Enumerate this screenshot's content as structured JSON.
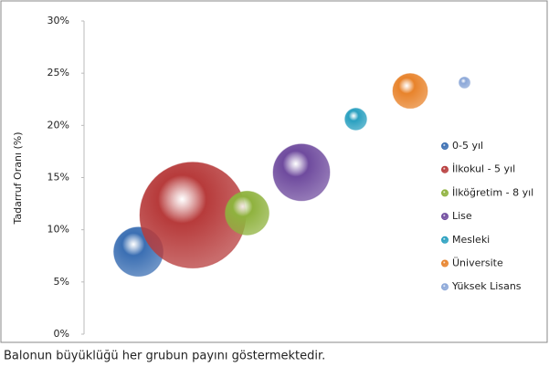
{
  "chart_data": {
    "type": "bubble",
    "y_label": "Tadarruf Oranı (%)",
    "note": "Balonun büyüklüğü her grubun payını göstermektedir.",
    "xlim": [
      0,
      8
    ],
    "ylim": [
      0,
      30
    ],
    "yticks": [
      {
        "value": 0,
        "label": "0%"
      },
      {
        "value": 5,
        "label": "5%"
      },
      {
        "value": 10,
        "label": "10%"
      },
      {
        "value": 15,
        "label": "15%"
      },
      {
        "value": 20,
        "label": "20%"
      },
      {
        "value": 25,
        "label": "25%"
      },
      {
        "value": 30,
        "label": "30%"
      }
    ],
    "legend": "right",
    "series": [
      {
        "name": "0-5 yıl",
        "color": "#3b6fb3",
        "x": [
          1
        ],
        "values": [
          7.9
        ],
        "sizes": [
          11.8
        ]
      },
      {
        "name": "İlkokul - 5 yıl",
        "color": "#b73b3b",
        "x": [
          2
        ],
        "values": [
          11.4
        ],
        "sizes": [
          54.5
        ]
      },
      {
        "name": "İlköğretim - 8 yıl",
        "color": "#8fb23e",
        "x": [
          3
        ],
        "values": [
          11.6
        ],
        "sizes": [
          9.3
        ]
      },
      {
        "name": "Lise",
        "color": "#6f4b9e",
        "x": [
          4
        ],
        "values": [
          15.5
        ],
        "sizes": [
          15.6
        ]
      },
      {
        "name": "Mesleki",
        "color": "#2aa0c0",
        "x": [
          5
        ],
        "values": [
          20.6
        ],
        "sizes": [
          2.3
        ]
      },
      {
        "name": "Üniversite",
        "color": "#e8832b",
        "x": [
          6
        ],
        "values": [
          23.3
        ],
        "sizes": [
          5.9
        ]
      },
      {
        "name": "Yüksek Lisans",
        "color": "#8ba7d8",
        "x": [
          7
        ],
        "values": [
          24.1
        ],
        "sizes": [
          0.6
        ]
      }
    ]
  }
}
